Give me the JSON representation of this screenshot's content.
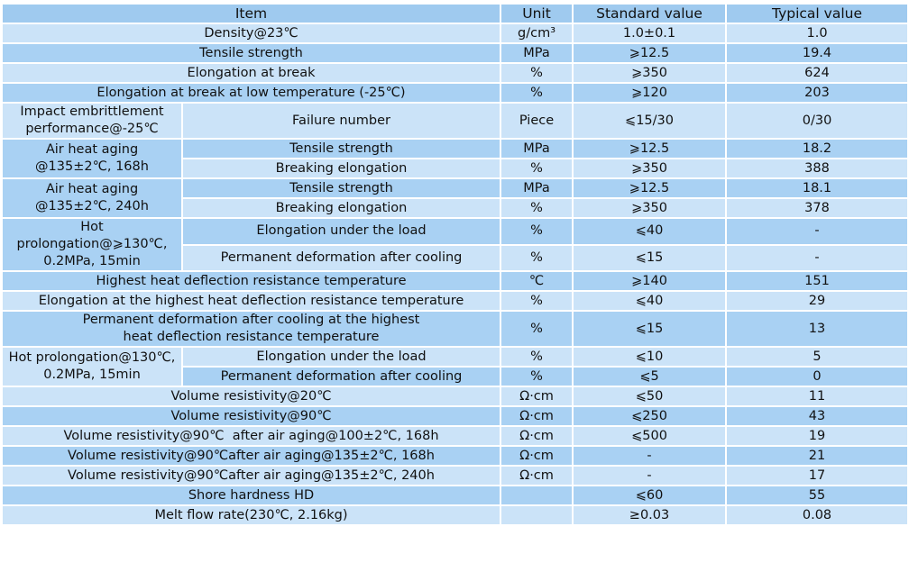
{
  "table": {
    "header": [
      "Item",
      "Unit",
      "Standard value",
      "Typical value"
    ],
    "rows": [
      {
        "item": "Density@23℃",
        "unit": "g/cm³",
        "standard": "1.0±0.1",
        "typical": "1.0"
      },
      {
        "item": "Tensile strength",
        "unit": "MPa",
        "standard": "⩾12.5",
        "typical": "19.4"
      },
      {
        "item": "Elongation at break",
        "unit": "%",
        "standard": "⩾350",
        "typical": "624"
      },
      {
        "item": "Elongation at break at low temperature (-25℃)",
        "unit": "%",
        "standard": "⩾120",
        "typical": "203"
      },
      {
        "item": [
          "Impact embrittlement",
          "performance@-25℃"
        ],
        "subrows": [
          {
            "item": "Failure number",
            "unit": "Piece",
            "standard": "⩽15/30",
            "typical": "0/30"
          }
        ]
      },
      {
        "item": [
          "Air heat aging",
          "@135±2℃, 168h"
        ],
        "subrows": [
          {
            "item": "Tensile strength",
            "unit": "MPa",
            "standard": "⩾12.5",
            "typical": "18.2"
          },
          {
            "item": "Breaking elongation",
            "unit": "%",
            "standard": "⩾350",
            "typical": "388"
          }
        ]
      },
      {
        "item": [
          "Air heat aging",
          "@135±2℃, 240h"
        ],
        "subrows": [
          {
            "item": "Tensile strength",
            "unit": "MPa",
            "standard": "⩾12.5",
            "typical": "18.1"
          },
          {
            "item": "Breaking elongation",
            "unit": "%",
            "standard": "⩾350",
            "typical": "378"
          }
        ]
      },
      {
        "item": [
          "Hot",
          "prolongation@⩾130℃,",
          "0.2MPa, 15min"
        ],
        "subrows": [
          {
            "item": "Elongation under the load",
            "unit": "%",
            "standard": "⩽40",
            "typical": "-"
          },
          {
            "item": "Permanent deformation after cooling",
            "unit": "%",
            "standard": "⩽15",
            "typical": "-"
          }
        ]
      },
      {
        "item": "Highest heat deflection resistance temperature",
        "unit": "℃",
        "standard": "⩾140",
        "typical": "151"
      },
      {
        "item": "Elongation at the highest heat deflection resistance temperature",
        "unit": "%",
        "standard": "⩽40",
        "typical": "29"
      },
      {
        "item": [
          "Permanent deformation after cooling at the highest",
          "heat deflection resistance temperature"
        ],
        "unit": "%",
        "standard": "⩽15",
        "typical": "13"
      },
      {
        "item": [
          "Hot prolongation@130℃,",
          "0.2MPa, 15min"
        ],
        "subrows": [
          {
            "item": "Elongation under the load",
            "unit": "%",
            "standard": "⩽10",
            "typical": "5"
          },
          {
            "item": "Permanent deformation after cooling",
            "unit": "%",
            "standard": "⩽5",
            "typical": "0"
          }
        ]
      },
      {
        "item": "Volume resistivity@20℃",
        "unit": "Ω·cm",
        "standard": "⩽50",
        "typical": "11"
      },
      {
        "item": "Volume resistivity@90℃",
        "unit": "Ω·cm",
        "standard": "⩽250",
        "typical": "43"
      },
      {
        "item": "Volume resistivity@90℃  after air aging@100±2℃, 168h",
        "unit": "Ω·cm",
        "standard": "⩽500",
        "typical": "19"
      },
      {
        "item": "Volume resistivity@90℃after air aging@135±2℃, 168h",
        "unit": "Ω·cm",
        "standard": "-",
        "typical": "21"
      },
      {
        "item": "Volume resistivity@90℃after air aging@135±2℃, 240h",
        "unit": "Ω·cm",
        "standard": "-",
        "typical": "17"
      },
      {
        "item": "Shore hardness HD",
        "standard": "⩽60",
        "typical": "55"
      },
      {
        "item": "Melt flow rate(230℃, 2.16kg)",
        "standard": "≥0.03",
        "typical": "0.08"
      }
    ]
  }
}
